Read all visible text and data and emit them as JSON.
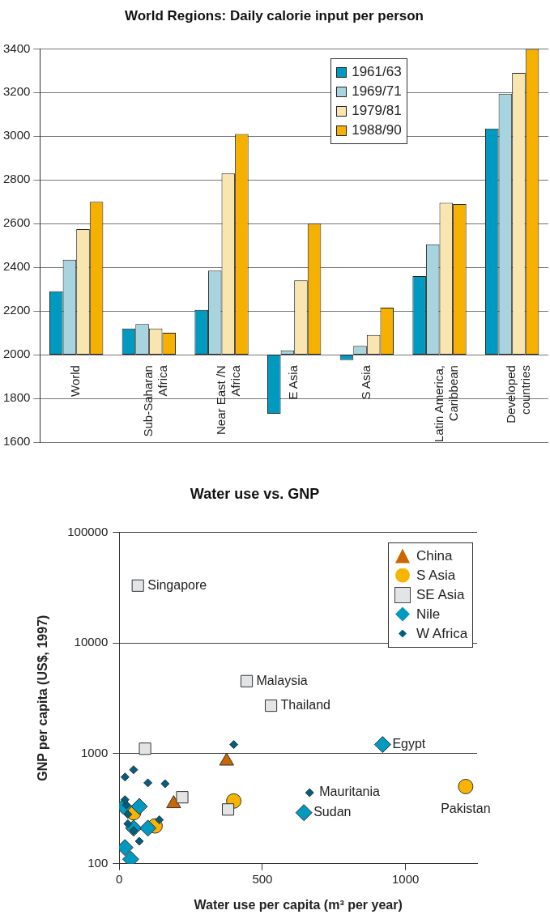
{
  "chart_data": [
    {
      "type": "bar",
      "title": "World Regions: Daily calorie input per person",
      "categories": [
        "World",
        "Sub-Saharan\nAfrica",
        "Near East /N\nAfrica",
        "E Asia",
        "S Asia",
        "Latin America,\nCaribbean",
        "Developed\ncountries"
      ],
      "series": [
        {
          "name": "1961/63",
          "color": "#0099c0",
          "base": [
            2000,
            2000,
            2000,
            2000,
            2000,
            2000,
            2000
          ],
          "values": [
            290,
            120,
            205,
            -270,
            -25,
            360,
            1035
          ]
        },
        {
          "name": "1969/71",
          "color": "#a8d4e0",
          "base": [
            2000,
            2000,
            2000,
            2000,
            2000,
            2000,
            2000
          ],
          "values": [
            435,
            140,
            385,
            20,
            40,
            505,
            1195
          ]
        },
        {
          "name": "1979/81",
          "color": "#f9e5b0",
          "base": [
            2000,
            2000,
            2000,
            2000,
            2000,
            2000,
            2000
          ],
          "values": [
            575,
            120,
            830,
            340,
            90,
            695,
            1290
          ]
        },
        {
          "name": "1988/90",
          "color": "#f5b000",
          "base": [
            2000,
            2000,
            2000,
            2000,
            2000,
            2000,
            2000
          ],
          "values": [
            700,
            100,
            1010,
            600,
            215,
            690,
            1400
          ]
        }
      ],
      "ylim": [
        1600,
        3400
      ],
      "yticks": [
        1600,
        1800,
        2000,
        2200,
        2400,
        2600,
        2800,
        3000,
        3200,
        3400
      ],
      "grid": "y",
      "legend": "top"
    },
    {
      "type": "scatter",
      "title": "Water use vs. GNP",
      "xlabel": "Water use per capita (m³ per year)",
      "ylabel": "GNP per capita (US$, 1997)",
      "log": "y",
      "xlim": [
        0,
        1250
      ],
      "xticks": [
        0,
        500,
        1000
      ],
      "ylim": [
        100,
        100000
      ],
      "yticks": [
        100,
        1000,
        10000,
        100000
      ],
      "grid": "y",
      "legend": "top right",
      "series": [
        {
          "name": "China",
          "color": "#cc6600",
          "marker": "triangle",
          "x": [
            375,
            190
          ],
          "values": [
            850,
            350
          ]
        },
        {
          "name": "S Asia",
          "color": "#f8b400",
          "marker": "circle",
          "x": [
            400,
            1210,
            50,
            125
          ],
          "values": [
            370,
            500,
            290,
            220
          ]
        },
        {
          "name": "SE Asia",
          "color": "#e3e4e6",
          "marker": "square",
          "x": [
            65,
            445,
            530,
            380,
            90,
            220
          ],
          "values": [
            33000,
            4500,
            2700,
            310,
            1100,
            400
          ]
        },
        {
          "name": "Nile",
          "color": "#0099c0",
          "marker": "diamond",
          "x": [
            920,
            645,
            15,
            70,
            50,
            100,
            20,
            40
          ],
          "values": [
            1200,
            290,
            330,
            330,
            210,
            210,
            140,
            110
          ]
        },
        {
          "name": "W Africa",
          "color": "#005f7f",
          "marker": "diamond",
          "x": [
            665,
            400,
            50,
            20,
            100,
            160,
            140,
            70,
            50,
            30,
            30,
            25,
            20
          ],
          "values": [
            440,
            1200,
            710,
            610,
            540,
            530,
            250,
            160,
            200,
            230,
            280,
            340,
            380
          ]
        }
      ],
      "annotations": [
        {
          "text": "Singapore",
          "x": 65,
          "y": 33000
        },
        {
          "text": "Malaysia",
          "x": 445,
          "y": 4500
        },
        {
          "text": "Thailand",
          "x": 530,
          "y": 2700
        },
        {
          "text": "Egypt",
          "x": 920,
          "y": 1200
        },
        {
          "text": "Mauritania",
          "x": 665,
          "y": 440
        },
        {
          "text": "Sudan",
          "x": 645,
          "y": 290
        },
        {
          "text": "Pakistan",
          "x": 1210,
          "y": 500
        }
      ]
    }
  ]
}
